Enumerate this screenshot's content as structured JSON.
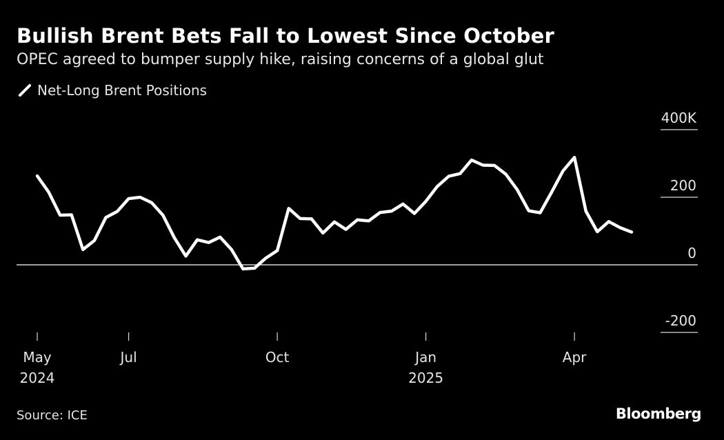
{
  "header": {
    "title": "Bullish Brent Bets Fall to Lowest Since October",
    "subtitle": "OPEC agreed to bumper supply hike, raising concerns of a global glut"
  },
  "footer": {
    "source": "Source: ICE",
    "brand": "Bloomberg"
  },
  "colors": {
    "background": "#000000",
    "line": "#ffffff",
    "text": "#e6e6e6"
  },
  "chart_data": {
    "type": "line",
    "title": "Bullish Brent Bets Fall to Lowest Since October",
    "subtitle": "OPEC agreed to bumper supply hike, raising concerns of a global glut",
    "xlabel": "",
    "ylabel": "",
    "ylim": [
      -200,
      400
    ],
    "yticks": [
      {
        "value": 400,
        "label": "400K"
      },
      {
        "value": 200,
        "label": "200"
      },
      {
        "value": 0,
        "label": "0"
      },
      {
        "value": -200,
        "label": "-200"
      }
    ],
    "xticks": [
      {
        "week": 0,
        "label": "May",
        "sublabel": "2024"
      },
      {
        "week": 8,
        "label": "Jul",
        "sublabel": ""
      },
      {
        "week": 21,
        "label": "Oct",
        "sublabel": ""
      },
      {
        "week": 34,
        "label": "Jan",
        "sublabel": "2025"
      },
      {
        "week": 47,
        "label": "Apr",
        "sublabel": ""
      }
    ],
    "x_unit": "weeks since start of May 2024",
    "legend": "top-left",
    "series": [
      {
        "name": "Net-Long Brent Positions",
        "color": "#ffffff",
        "x": [
          0,
          1,
          2,
          3,
          4,
          5,
          6,
          7,
          8,
          9,
          10,
          11,
          12,
          13,
          14,
          15,
          16,
          17,
          18,
          19,
          20,
          21,
          22,
          23,
          24,
          25,
          26,
          27,
          28,
          29,
          30,
          31,
          32,
          33,
          34,
          35,
          36,
          37,
          38,
          39,
          40,
          41,
          42,
          43,
          44,
          45,
          46,
          47,
          48,
          49,
          50,
          51,
          52
        ],
        "values": [
          263,
          215,
          147,
          148,
          45,
          72,
          140,
          158,
          196,
          200,
          184,
          147,
          80,
          26,
          74,
          66,
          82,
          45,
          -12,
          -10,
          20,
          42,
          167,
          137,
          136,
          94,
          127,
          105,
          133,
          130,
          155,
          159,
          180,
          152,
          188,
          232,
          262,
          270,
          310,
          295,
          294,
          268,
          222,
          160,
          154,
          215,
          278,
          318,
          159,
          98,
          128,
          110,
          97
        ]
      }
    ]
  }
}
